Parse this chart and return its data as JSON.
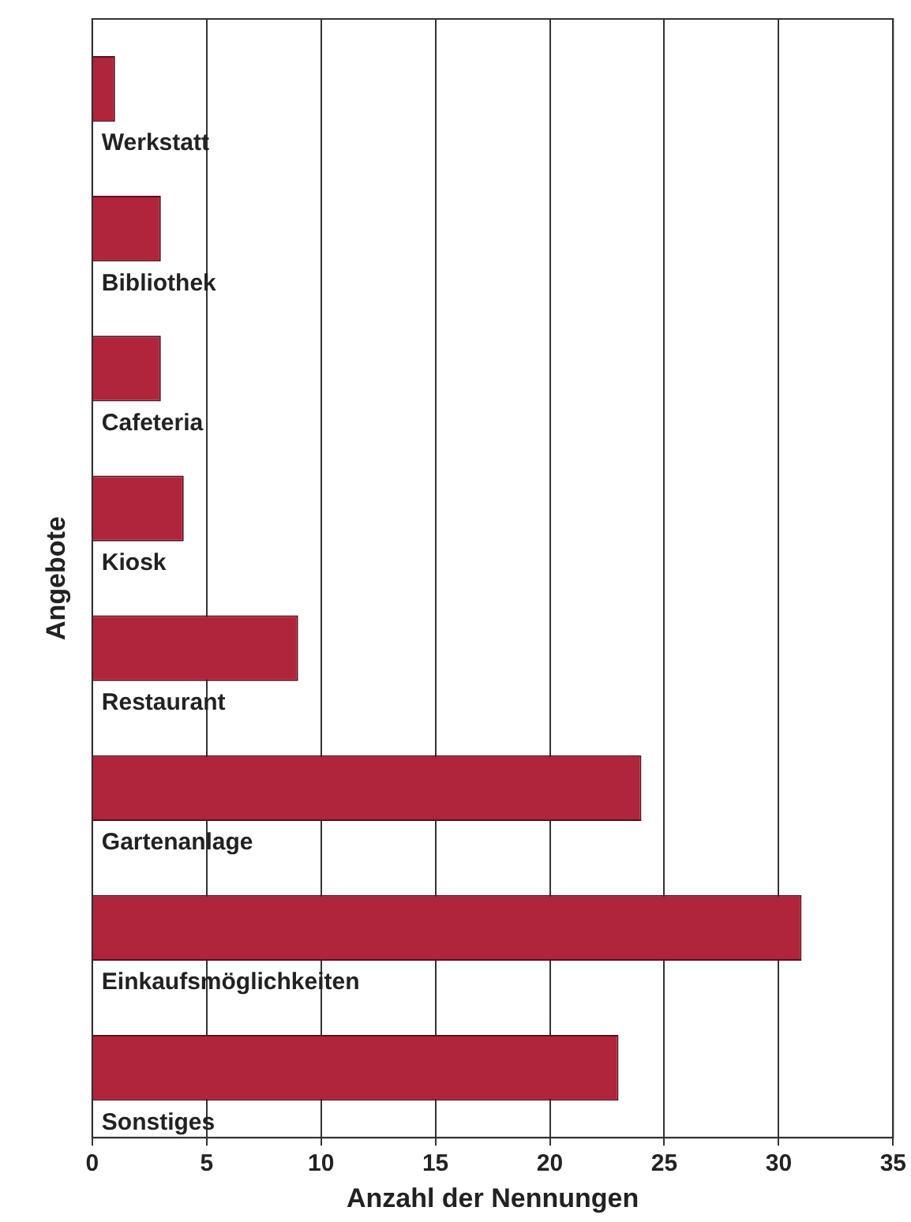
{
  "chart_data": {
    "type": "bar",
    "orientation": "horizontal",
    "xlabel": "Anzahl der Nennungen",
    "ylabel": "Angebote",
    "categories": [
      "Werkstatt",
      "Bibliothek",
      "Cafeteria",
      "Kiosk",
      "Restaurant",
      "Gartenanlage",
      "Einkaufsmöglichkeiten",
      "Sonstiges"
    ],
    "values": [
      1,
      3,
      3,
      4,
      9,
      24,
      31,
      23
    ],
    "color": "#b0243c",
    "xlim": [
      0,
      35
    ],
    "xticks": [
      0,
      5,
      10,
      15,
      20,
      25,
      30,
      35
    ],
    "grid": "x",
    "legend": false
  }
}
